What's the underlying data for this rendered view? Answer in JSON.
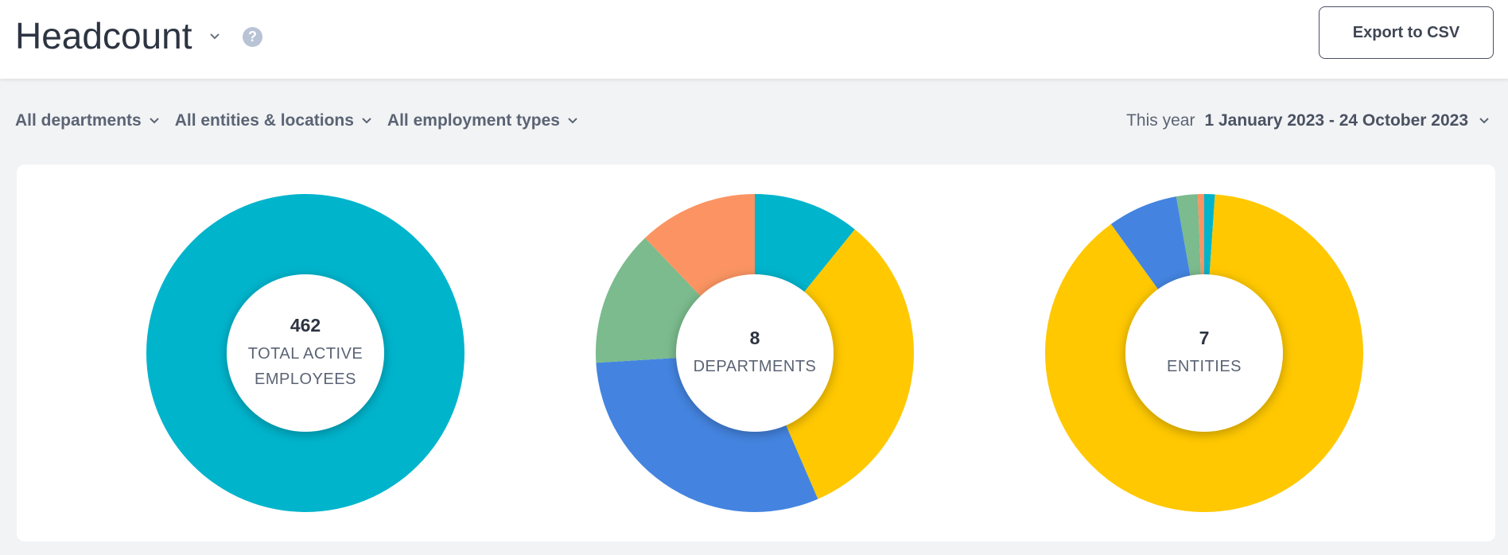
{
  "header": {
    "title": "Headcount",
    "help": "?",
    "button": "Export to CSV"
  },
  "filters": [
    "All departments",
    "All entities & locations",
    "All employment types"
  ],
  "period": {
    "label": "This year",
    "range": "1 January 2023 - 24 October 2023"
  },
  "chart_data": [
    {
      "type": "pie",
      "center_value": "462",
      "center_label": "TOTAL ACTIVE EMPLOYEES",
      "values": [
        462
      ],
      "colors": [
        "#00b4cc"
      ]
    },
    {
      "type": "pie",
      "center_value": "8",
      "center_label": "DEPARTMENTS",
      "values": [
        50,
        151,
        141,
        64,
        56
      ],
      "colors": [
        "#00b4cc",
        "#ffc800",
        "#4484e0",
        "#7bbb8d",
        "#fb9462"
      ]
    },
    {
      "type": "pie",
      "center_value": "7",
      "center_label": "ENTITIES",
      "values": [
        5,
        411,
        33,
        10,
        3
      ],
      "colors": [
        "#00b4cc",
        "#ffc800",
        "#4484e0",
        "#7bbb8d",
        "#fb9462"
      ]
    }
  ]
}
